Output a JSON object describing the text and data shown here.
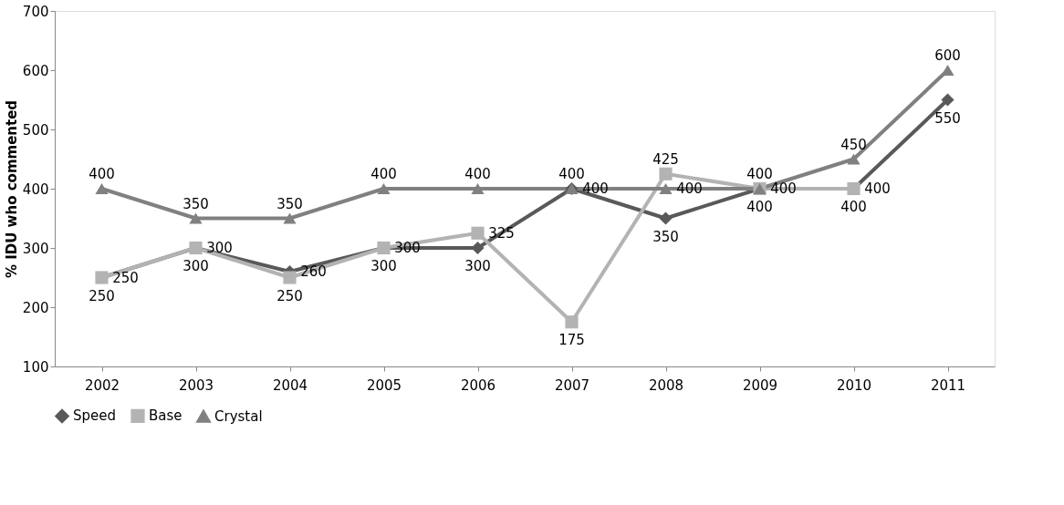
{
  "chart_data": {
    "type": "line",
    "ylabel": "% IDU who commented",
    "categories": [
      "2002",
      "2003",
      "2004",
      "2005",
      "2006",
      "2007",
      "2008",
      "2009",
      "2010",
      "2011"
    ],
    "series": [
      {
        "name": "Speed",
        "color": "#595959",
        "marker": "diamond",
        "values": [
          250,
          300,
          260,
          300,
          300,
          400,
          350,
          400,
          400,
          550
        ]
      },
      {
        "name": "Base",
        "color": "#b3b3b3",
        "marker": "square",
        "values": [
          250,
          300,
          250,
          300,
          325,
          175,
          425,
          400,
          400,
          null
        ]
      },
      {
        "name": "Crystal",
        "color": "#808080",
        "marker": "triangle",
        "values": [
          400,
          350,
          350,
          400,
          400,
          400,
          400,
          400,
          450,
          600
        ]
      }
    ],
    "ylim": [
      100,
      700
    ],
    "yticks": [
      100,
      200,
      300,
      400,
      500,
      600,
      700
    ],
    "grid": false,
    "legend": "bottom",
    "data_labels": true,
    "line_style": "solid"
  }
}
